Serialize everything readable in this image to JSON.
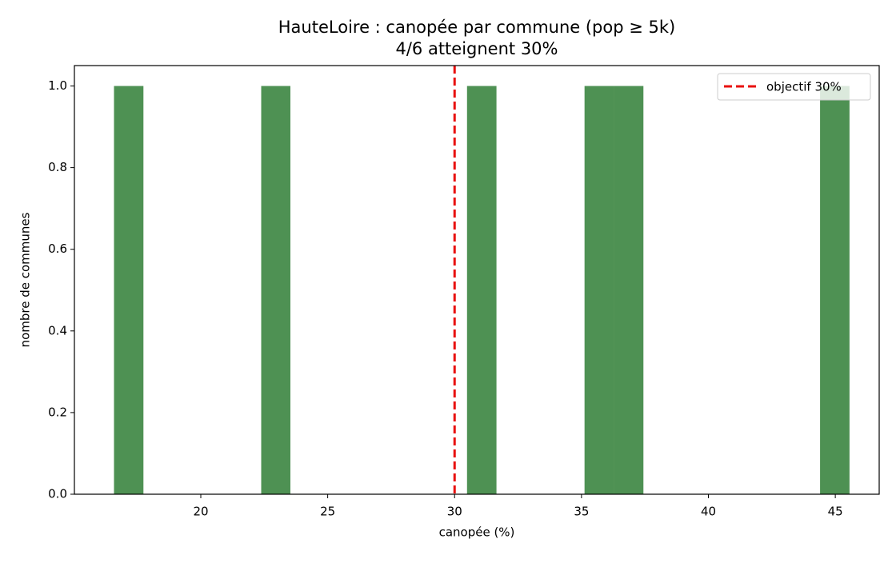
{
  "chart_data": {
    "type": "histogram",
    "title": "HauteLoire : canopée par commune (pop ≥ 5k)",
    "subtitle": "4/6 atteignent 30%",
    "x_label": "canopée (%)",
    "y_label": "nombre de communes",
    "bins": [
      16.58,
      17.74,
      18.9,
      20.06,
      21.22,
      22.38,
      23.53,
      24.69,
      25.85,
      27.01,
      28.17,
      29.33,
      30.49,
      31.65,
      32.81,
      33.97,
      35.12,
      36.28,
      37.44,
      38.6,
      39.76,
      40.92,
      42.08,
      43.24,
      44.4,
      45.56
    ],
    "counts": [
      1,
      0,
      0,
      0,
      0,
      1,
      0,
      0,
      0,
      0,
      0,
      0,
      1,
      0,
      0,
      0,
      1,
      1,
      0,
      0,
      0,
      0,
      0,
      0,
      1
    ],
    "color": "#4e9153",
    "xlim": [
      15.02,
      46.73
    ],
    "xticks": [
      20,
      25,
      30,
      35,
      40,
      45
    ],
    "ylim": [
      0,
      1.05
    ],
    "yticks": [
      {
        "value": 0,
        "label": "0.0"
      },
      0.2,
      0.4,
      0.6,
      0.8,
      {
        "value": 1,
        "label": "1.0"
      }
    ],
    "target_line": {
      "x": 30,
      "label": "objectif 30%",
      "color": "#e8110f"
    },
    "legend": "upper right"
  }
}
